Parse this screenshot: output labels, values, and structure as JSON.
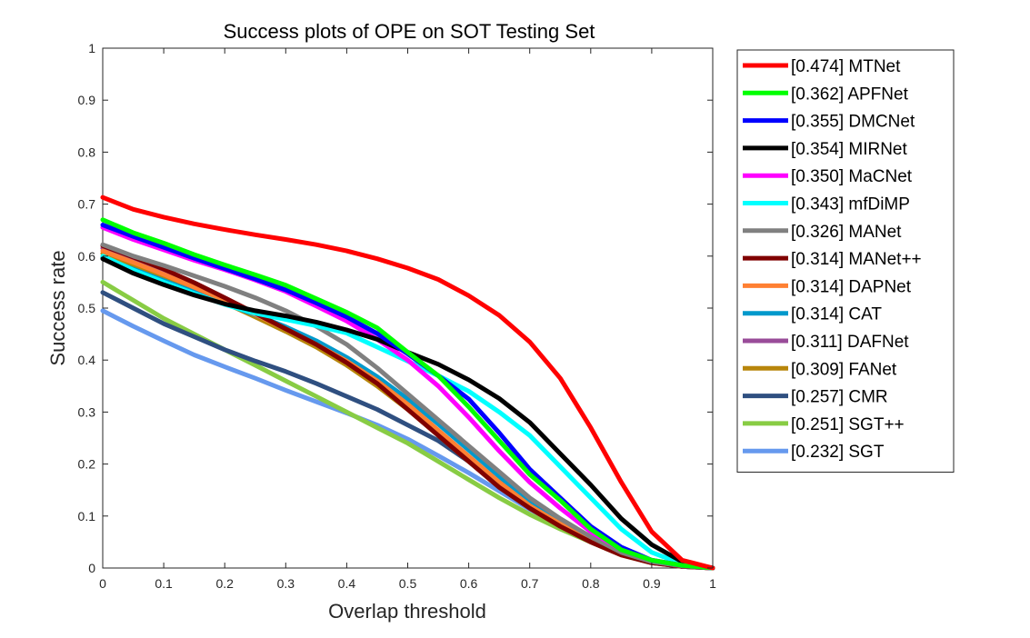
{
  "chart_data": {
    "type": "line",
    "title": "Success plots of OPE on SOT Testing Set",
    "xlabel": "Overlap threshold",
    "ylabel": "Success rate",
    "xlim": [
      0,
      1
    ],
    "ylim": [
      0,
      1
    ],
    "x_ticks": [
      "0",
      "0.1",
      "0.2",
      "0.3",
      "0.4",
      "0.5",
      "0.6",
      "0.7",
      "0.8",
      "0.9",
      "1"
    ],
    "y_ticks": [
      "0",
      "0.1",
      "0.2",
      "0.3",
      "0.4",
      "0.5",
      "0.6",
      "0.7",
      "0.8",
      "0.9",
      "1"
    ],
    "grid": false,
    "legend_position": "outside-right",
    "x": [
      0,
      0.05,
      0.1,
      0.15,
      0.2,
      0.25,
      0.3,
      0.35,
      0.4,
      0.45,
      0.5,
      0.55,
      0.6,
      0.65,
      0.7,
      0.75,
      0.8,
      0.85,
      0.9,
      0.95,
      1
    ],
    "series": [
      {
        "name": "[0.474] MTNet",
        "color": "#ff0000",
        "values": [
          0.713,
          0.69,
          0.675,
          0.662,
          0.651,
          0.641,
          0.632,
          0.622,
          0.61,
          0.595,
          0.577,
          0.555,
          0.524,
          0.486,
          0.435,
          0.365,
          0.27,
          0.165,
          0.07,
          0.015,
          0.0
        ]
      },
      {
        "name": "[0.362] APFNet",
        "color": "#00ff00",
        "values": [
          0.67,
          0.645,
          0.625,
          0.603,
          0.583,
          0.564,
          0.544,
          0.518,
          0.492,
          0.462,
          0.415,
          0.37,
          0.31,
          0.245,
          0.18,
          0.13,
          0.075,
          0.035,
          0.015,
          0.005,
          0.0
        ]
      },
      {
        "name": "[0.355] DMCNet",
        "color": "#0000ff",
        "values": [
          0.66,
          0.638,
          0.617,
          0.596,
          0.576,
          0.556,
          0.535,
          0.51,
          0.483,
          0.451,
          0.412,
          0.37,
          0.325,
          0.26,
          0.19,
          0.135,
          0.08,
          0.04,
          0.015,
          0.005,
          0.0
        ]
      },
      {
        "name": "[0.354] MIRNet",
        "color": "#000000",
        "values": [
          0.595,
          0.567,
          0.545,
          0.525,
          0.508,
          0.495,
          0.485,
          0.473,
          0.458,
          0.44,
          0.415,
          0.392,
          0.362,
          0.326,
          0.28,
          0.22,
          0.16,
          0.095,
          0.045,
          0.012,
          0.0
        ]
      },
      {
        "name": "[0.350] MaCNet",
        "color": "#ff00ff",
        "values": [
          0.655,
          0.632,
          0.612,
          0.592,
          0.574,
          0.554,
          0.532,
          0.504,
          0.475,
          0.44,
          0.4,
          0.35,
          0.29,
          0.225,
          0.165,
          0.115,
          0.07,
          0.035,
          0.015,
          0.005,
          0.0
        ]
      },
      {
        "name": "[0.343] mfDiMP",
        "color": "#00ffff",
        "values": [
          0.6,
          0.573,
          0.55,
          0.528,
          0.507,
          0.49,
          0.478,
          0.466,
          0.452,
          0.425,
          0.398,
          0.37,
          0.34,
          0.3,
          0.255,
          0.195,
          0.135,
          0.075,
          0.03,
          0.008,
          0.0
        ]
      },
      {
        "name": "[0.326] MANet",
        "color": "#808080",
        "values": [
          0.622,
          0.6,
          0.582,
          0.562,
          0.542,
          0.52,
          0.495,
          0.465,
          0.43,
          0.385,
          0.335,
          0.285,
          0.235,
          0.185,
          0.135,
          0.095,
          0.06,
          0.03,
          0.012,
          0.004,
          0.0
        ]
      },
      {
        "name": "[0.314] MANet++",
        "color": "#800000",
        "values": [
          0.62,
          0.598,
          0.575,
          0.549,
          0.52,
          0.49,
          0.46,
          0.43,
          0.395,
          0.355,
          0.305,
          0.255,
          0.205,
          0.155,
          0.115,
          0.08,
          0.05,
          0.025,
          0.01,
          0.003,
          0.0
        ]
      },
      {
        "name": "[0.314] DAPNet",
        "color": "#ff8033",
        "values": [
          0.61,
          0.588,
          0.565,
          0.54,
          0.515,
          0.488,
          0.46,
          0.43,
          0.398,
          0.36,
          0.315,
          0.265,
          0.215,
          0.165,
          0.12,
          0.085,
          0.053,
          0.027,
          0.011,
          0.003,
          0.0
        ]
      },
      {
        "name": "[0.314] CAT",
        "color": "#0099cc",
        "values": [
          0.597,
          0.575,
          0.553,
          0.531,
          0.509,
          0.487,
          0.464,
          0.437,
          0.405,
          0.368,
          0.325,
          0.277,
          0.227,
          0.176,
          0.128,
          0.088,
          0.055,
          0.028,
          0.011,
          0.003,
          0.0
        ]
      },
      {
        "name": "[0.311] DAFNet",
        "color": "#994c99",
        "values": [
          0.615,
          0.592,
          0.57,
          0.545,
          0.518,
          0.49,
          0.46,
          0.43,
          0.398,
          0.36,
          0.312,
          0.262,
          0.212,
          0.163,
          0.118,
          0.083,
          0.052,
          0.026,
          0.01,
          0.003,
          0.0
        ]
      },
      {
        "name": "[0.309] FANet",
        "color": "#b8860b",
        "values": [
          0.605,
          0.583,
          0.56,
          0.535,
          0.51,
          0.483,
          0.455,
          0.425,
          0.39,
          0.35,
          0.305,
          0.255,
          0.205,
          0.157,
          0.115,
          0.08,
          0.05,
          0.025,
          0.01,
          0.003,
          0.0
        ]
      },
      {
        "name": "[0.257] CMR",
        "color": "#2f4f80",
        "values": [
          0.53,
          0.5,
          0.47,
          0.445,
          0.42,
          0.398,
          0.378,
          0.355,
          0.33,
          0.305,
          0.275,
          0.245,
          0.205,
          0.165,
          0.128,
          0.092,
          0.06,
          0.032,
          0.013,
          0.004,
          0.0
        ]
      },
      {
        "name": "[0.251] SGT++",
        "color": "#88cc44",
        "values": [
          0.55,
          0.515,
          0.48,
          0.45,
          0.42,
          0.39,
          0.36,
          0.33,
          0.3,
          0.27,
          0.24,
          0.205,
          0.17,
          0.135,
          0.103,
          0.075,
          0.05,
          0.028,
          0.012,
          0.003,
          0.0
        ]
      },
      {
        "name": "[0.232] SGT",
        "color": "#6699ee",
        "values": [
          0.495,
          0.465,
          0.437,
          0.41,
          0.387,
          0.365,
          0.342,
          0.32,
          0.298,
          0.275,
          0.248,
          0.216,
          0.183,
          0.148,
          0.113,
          0.083,
          0.055,
          0.03,
          0.013,
          0.003,
          0.0
        ]
      }
    ]
  }
}
